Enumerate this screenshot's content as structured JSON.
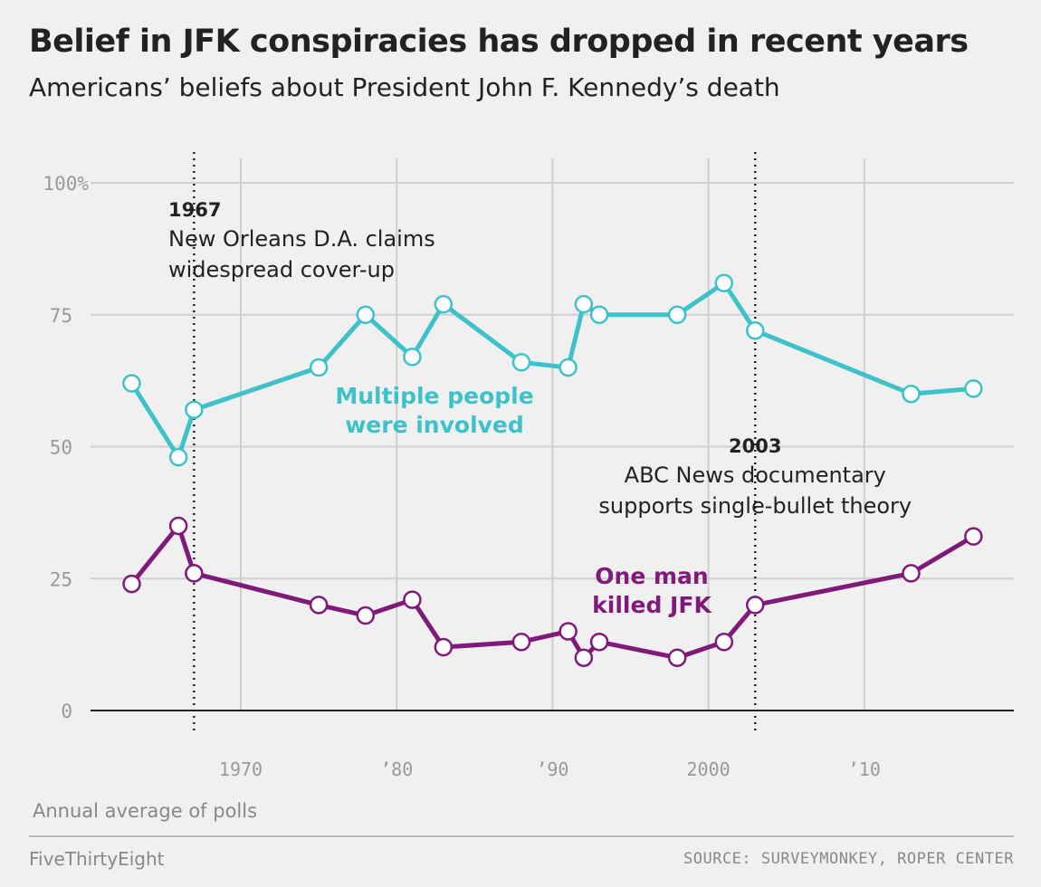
{
  "title": "Belief in JFK conspiracies has dropped in recent years",
  "subtitle": "Americans’ beliefs about President John F. Kennedy’s death",
  "footnote": "Annual average of polls",
  "brand": "FiveThirtyEight",
  "source": "SOURCE: SURVEYMONKEY, ROPER CENTER",
  "chart_data": {
    "type": "line",
    "ylim": [
      0,
      100
    ],
    "xlim": [
      1958,
      2019
    ],
    "grid": true,
    "y_ticks": [
      {
        "v": 0,
        "label": "0"
      },
      {
        "v": 25,
        "label": "25"
      },
      {
        "v": 50,
        "label": "50"
      },
      {
        "v": 75,
        "label": "75"
      },
      {
        "v": 100,
        "label": "100%"
      }
    ],
    "x_ticks": [
      {
        "v": 1970,
        "label": "1970"
      },
      {
        "v": 1980,
        "label": "’80"
      },
      {
        "v": 1990,
        "label": "’90"
      },
      {
        "v": 2000,
        "label": "2000"
      },
      {
        "v": 2010,
        "label": "’10"
      }
    ],
    "series": [
      {
        "name": "Multiple people were involved",
        "label_lines": [
          "Multiple people",
          "were involved"
        ],
        "color": "#3ec1c9",
        "x": [
          1963,
          1966,
          1967,
          1975,
          1978,
          1981,
          1983,
          1988,
          1991,
          1992,
          1993,
          1998,
          2001,
          2003,
          2013,
          2017
        ],
        "values": [
          62,
          48,
          57,
          65,
          75,
          67,
          77,
          66,
          65,
          77,
          75,
          75,
          81,
          72,
          60,
          61
        ]
      },
      {
        "name": "One man killed JFK",
        "label_lines": [
          "One man",
          "killed JFK"
        ],
        "color": "#7f1a7a",
        "x": [
          1963,
          1966,
          1967,
          1975,
          1978,
          1981,
          1983,
          1988,
          1991,
          1992,
          1993,
          1998,
          2001,
          2003,
          2013,
          2017
        ],
        "values": [
          24,
          35,
          26,
          20,
          18,
          21,
          12,
          13,
          15,
          10,
          13,
          10,
          13,
          20,
          26,
          33
        ]
      }
    ],
    "annotations": [
      {
        "x": 1967,
        "year": "1967",
        "lines": [
          "New Orleans D.A. claims",
          "widespread cover-up"
        ]
      },
      {
        "x": 2003,
        "year": "2003",
        "lines": [
          "ABC News documentary",
          "supports single-bullet theory"
        ]
      }
    ]
  }
}
